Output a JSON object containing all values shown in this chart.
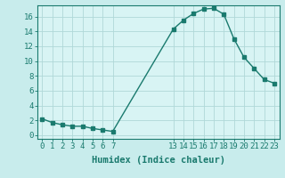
{
  "x": [
    0,
    1,
    2,
    3,
    4,
    5,
    6,
    7,
    13,
    14,
    15,
    16,
    17,
    18,
    19,
    20,
    21,
    22,
    23
  ],
  "y": [
    2.2,
    1.7,
    1.4,
    1.2,
    1.2,
    0.9,
    0.7,
    0.5,
    14.3,
    15.5,
    16.4,
    17.0,
    17.1,
    16.3,
    13.0,
    10.5,
    9.0,
    7.5,
    7.0
  ],
  "xticks": [
    0,
    1,
    2,
    3,
    4,
    5,
    6,
    7,
    13,
    14,
    15,
    16,
    17,
    18,
    19,
    20,
    21,
    22,
    23
  ],
  "yticks": [
    0,
    2,
    4,
    6,
    8,
    10,
    12,
    14,
    16
  ],
  "xlabel": "Humidex (Indice chaleur)",
  "line_color": "#1a7a6e",
  "bg_color": "#c8ecec",
  "grid_color": "#b0d8d8",
  "plot_bg": "#d8f4f4",
  "xlim": [
    -0.5,
    23.5
  ],
  "ylim": [
    -0.5,
    17.5
  ],
  "tick_fontsize": 6.5,
  "xlabel_fontsize": 7.5
}
